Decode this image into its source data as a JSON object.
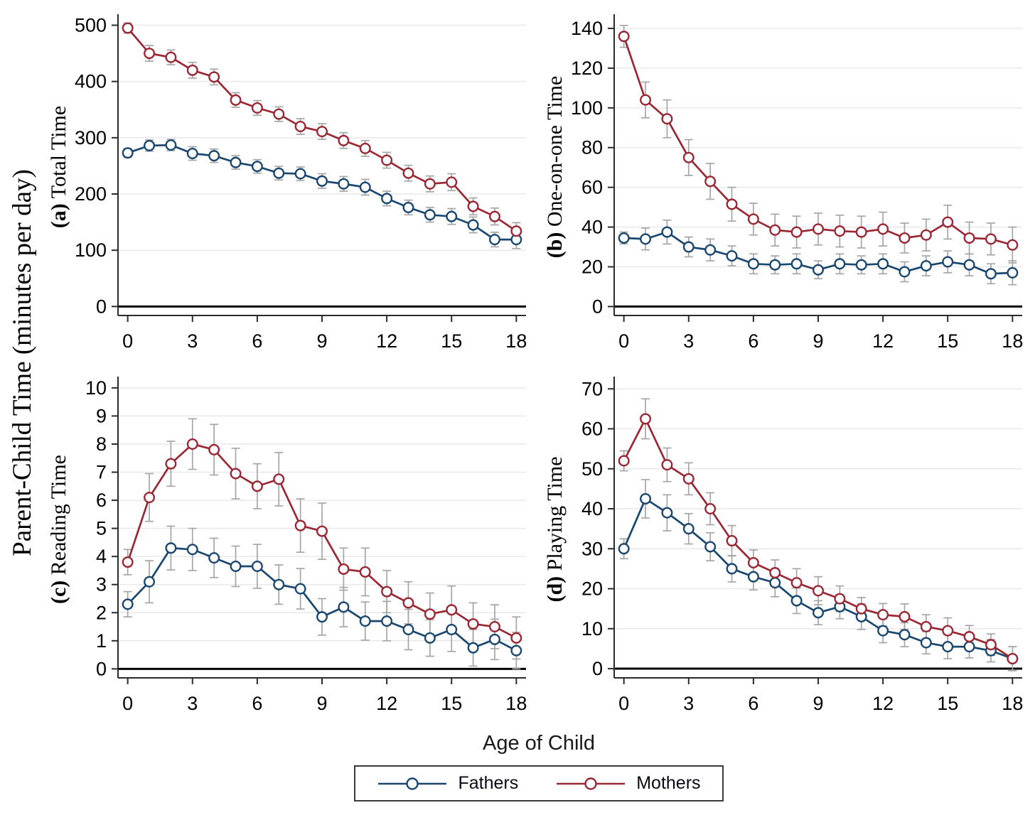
{
  "figure": {
    "ylabel": "Parent-Child Time (minutes per day)",
    "xlabel": "Age of Child",
    "legend": {
      "items": [
        {
          "label": "Fathers",
          "color": "#1a476f"
        },
        {
          "label": "Mothers",
          "color": "#9a2834"
        }
      ]
    },
    "style": {
      "fathers_color": "#1a476f",
      "mothers_color": "#9a2834",
      "error_bar_color": "#a6a6a6",
      "gridline_color": "#e9e9e9",
      "axis_color": "#2b2b2b",
      "zero_line_color": "#000000",
      "marker_fill": "#ffffff",
      "background": "#ffffff"
    }
  },
  "chart_data": [
    {
      "type": "line",
      "panel": "a",
      "title_bold": "(a)",
      "title_rest": " Total Time",
      "x": [
        0,
        1,
        2,
        3,
        4,
        5,
        6,
        7,
        8,
        9,
        10,
        11,
        12,
        13,
        14,
        15,
        16,
        17,
        18
      ],
      "xticks": [
        0,
        3,
        6,
        9,
        12,
        15,
        18
      ],
      "yticks": [
        0,
        100,
        200,
        300,
        400,
        500
      ],
      "xlim": [
        -0.45,
        18.45
      ],
      "ylim": [
        -16,
        512
      ],
      "series": [
        {
          "name": "Fathers",
          "color": "#1a476f",
          "values": [
            273,
            286,
            287,
            272,
            268,
            256,
            249,
            237,
            236,
            223,
            218,
            212,
            192,
            176,
            163,
            160,
            145,
            119,
            119
          ],
          "ci": [
            8,
            10,
            10,
            12,
            12,
            12,
            12,
            12,
            12,
            13,
            13,
            14,
            13,
            13,
            13,
            14,
            14,
            13,
            16
          ]
        },
        {
          "name": "Mothers",
          "color": "#9a2834",
          "values": [
            495,
            450,
            443,
            420,
            408,
            367,
            353,
            342,
            320,
            311,
            295,
            281,
            260,
            237,
            218,
            221,
            178,
            160,
            134
          ],
          "ci": [
            9,
            14,
            13,
            14,
            14,
            13,
            13,
            13,
            14,
            14,
            14,
            14,
            14,
            14,
            14,
            15,
            15,
            15,
            15
          ]
        }
      ]
    },
    {
      "type": "line",
      "panel": "b",
      "title_bold": "(b)",
      "title_rest": " One-on-one Time",
      "x": [
        0,
        1,
        2,
        3,
        4,
        5,
        6,
        7,
        8,
        9,
        10,
        11,
        12,
        13,
        14,
        15,
        16,
        17,
        18
      ],
      "xticks": [
        0,
        3,
        6,
        9,
        12,
        15,
        18
      ],
      "yticks": [
        0,
        20,
        40,
        60,
        80,
        100,
        120,
        140
      ],
      "xlim": [
        -0.45,
        18.45
      ],
      "ylim": [
        -4.5,
        145
      ],
      "series": [
        {
          "name": "Fathers",
          "color": "#1a476f",
          "values": [
            34.5,
            34,
            37.5,
            30,
            28.5,
            25.5,
            21.5,
            21,
            21.5,
            18.5,
            21.5,
            21,
            21.5,
            17.5,
            20.5,
            22.5,
            21,
            16.5,
            17
          ],
          "ci": [
            3,
            5.5,
            6,
            5,
            5.5,
            5,
            5,
            4.5,
            5,
            4.5,
            5,
            4.5,
            5,
            5,
            5,
            5.5,
            5.5,
            5,
            6
          ]
        },
        {
          "name": "Mothers",
          "color": "#9a2834",
          "values": [
            136,
            104,
            94.5,
            75,
            63,
            51.5,
            44,
            38.5,
            37.5,
            39,
            38,
            37.5,
            39,
            34.5,
            36,
            42.5,
            34.5,
            34,
            31
          ],
          "ci": [
            5.5,
            9,
            9.5,
            9,
            9,
            8.5,
            8,
            8,
            8,
            8,
            8,
            8,
            8.5,
            7.5,
            8,
            8.5,
            8,
            8,
            9
          ]
        }
      ]
    },
    {
      "type": "line",
      "panel": "c",
      "title_bold": "(c)",
      "title_rest": " Reading Time",
      "x": [
        0,
        1,
        2,
        3,
        4,
        5,
        6,
        7,
        8,
        9,
        10,
        11,
        12,
        13,
        14,
        15,
        16,
        17,
        18
      ],
      "xticks": [
        0,
        3,
        6,
        9,
        12,
        15,
        18
      ],
      "yticks": [
        0,
        1,
        2,
        3,
        4,
        5,
        6,
        7,
        8,
        9,
        10
      ],
      "xlim": [
        -0.45,
        18.45
      ],
      "ylim": [
        -0.32,
        10.25
      ],
      "series": [
        {
          "name": "Fathers",
          "color": "#1a476f",
          "values": [
            2.3,
            3.1,
            4.3,
            4.25,
            3.95,
            3.65,
            3.65,
            3.0,
            2.85,
            1.85,
            2.2,
            1.7,
            1.7,
            1.4,
            1.1,
            1.4,
            0.75,
            1.05,
            0.65
          ],
          "ci": [
            0.45,
            0.75,
            0.78,
            0.75,
            0.7,
            0.72,
            0.78,
            0.7,
            0.72,
            0.65,
            0.7,
            0.68,
            0.7,
            0.72,
            0.65,
            0.78,
            0.65,
            0.72,
            0.65
          ]
        },
        {
          "name": "Mothers",
          "color": "#9a2834",
          "values": [
            3.8,
            6.1,
            7.3,
            8.0,
            7.8,
            6.95,
            6.5,
            6.75,
            5.1,
            4.9,
            3.55,
            3.45,
            2.75,
            2.35,
            1.95,
            2.1,
            1.6,
            1.5,
            1.1
          ],
          "ci": [
            0.45,
            0.85,
            0.8,
            0.9,
            0.9,
            0.9,
            0.8,
            0.95,
            0.95,
            1.0,
            0.75,
            0.85,
            0.75,
            0.75,
            0.75,
            0.85,
            0.75,
            0.78,
            0.75
          ]
        }
      ]
    },
    {
      "type": "line",
      "panel": "d",
      "title_bold": "(d)",
      "title_rest": " Playing Time",
      "x": [
        0,
        1,
        2,
        3,
        4,
        5,
        6,
        7,
        8,
        9,
        10,
        11,
        12,
        13,
        14,
        15,
        16,
        17,
        18
      ],
      "xticks": [
        0,
        3,
        6,
        9,
        12,
        15,
        18
      ],
      "yticks": [
        0,
        10,
        20,
        30,
        40,
        50,
        60,
        70
      ],
      "xlim": [
        -0.45,
        18.45
      ],
      "ylim": [
        -2.3,
        72
      ],
      "series": [
        {
          "name": "Fathers",
          "color": "#1a476f",
          "values": [
            30,
            42.5,
            39,
            35,
            30.5,
            25,
            23,
            21.5,
            17,
            14,
            15.5,
            13,
            9.5,
            8.5,
            6.5,
            5.5,
            5.5,
            4.5,
            2.5
          ],
          "ci": [
            2.5,
            4.8,
            4.5,
            3.8,
            3.5,
            3.3,
            3.3,
            3.5,
            3.2,
            3,
            3,
            3.2,
            3,
            3,
            2.8,
            3,
            2.8,
            2.8,
            3
          ]
        },
        {
          "name": "Mothers",
          "color": "#9a2834",
          "values": [
            52,
            62.5,
            51,
            47.5,
            40,
            32,
            26.5,
            24,
            21.5,
            19.5,
            17.5,
            15,
            13.5,
            13,
            10.5,
            9.5,
            8,
            6,
            2.5
          ],
          "ci": [
            2.5,
            5,
            4.2,
            4,
            4,
            3.8,
            3.2,
            3.2,
            3.5,
            3.5,
            3.2,
            2.8,
            2.8,
            3.2,
            3,
            3.2,
            2.8,
            2.7,
            3
          ]
        }
      ]
    }
  ]
}
